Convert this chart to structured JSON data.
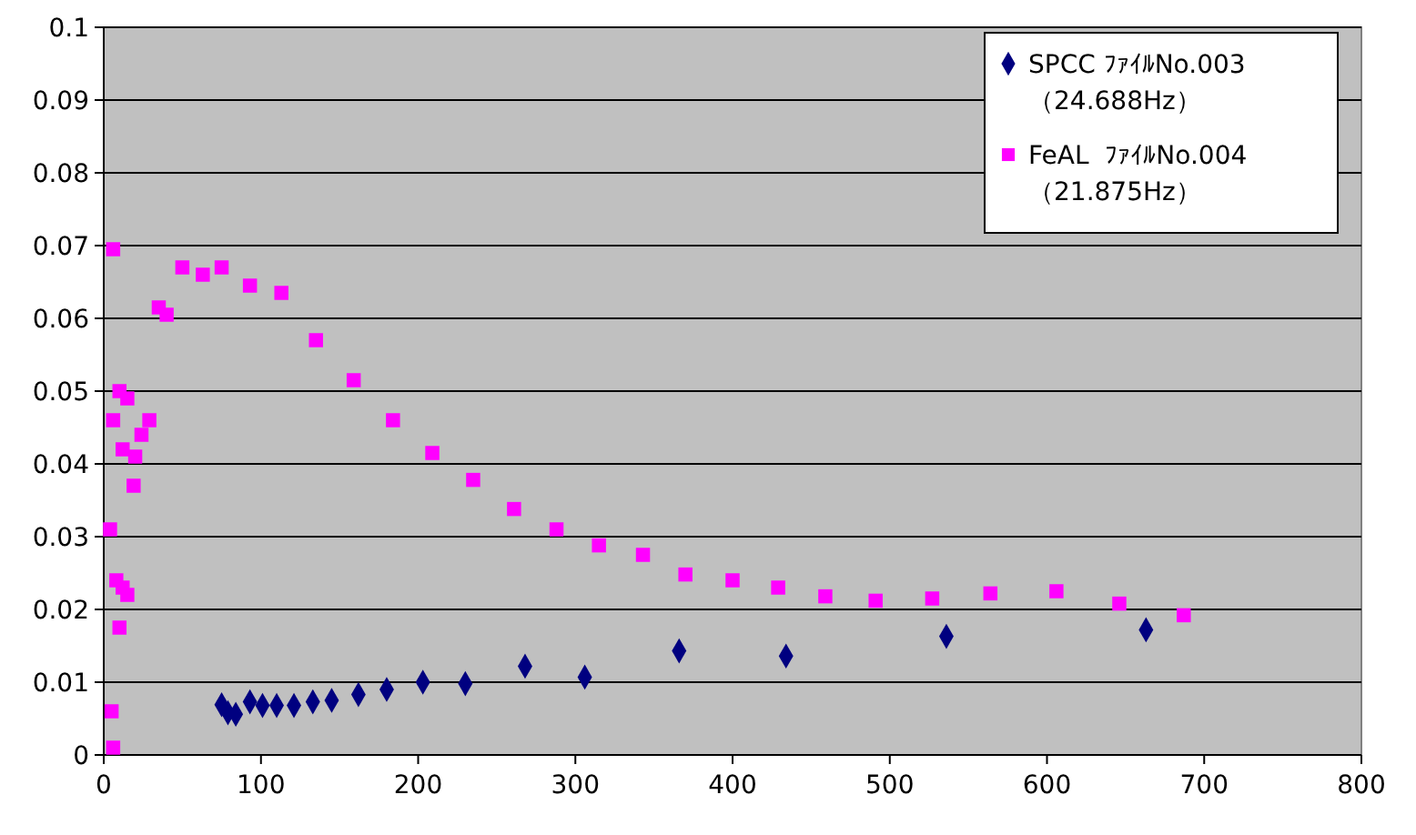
{
  "chart_data": {
    "type": "scatter",
    "xlim": [
      0,
      800
    ],
    "xticks": [
      0,
      100,
      200,
      300,
      400,
      500,
      600,
      700,
      800
    ],
    "ylim": [
      0,
      0.1
    ],
    "yticks": [
      0,
      0.01,
      0.02,
      0.03,
      0.04,
      0.05,
      0.06,
      0.07,
      0.08,
      0.09,
      0.1
    ],
    "grid": "y",
    "legend": "top right",
    "series": [
      {
        "name": "SPCC ﾌｧｲﾙNo.003\n（24.688Hz）",
        "color": "#000080",
        "marker": "diamond",
        "x": [
          75,
          79,
          84,
          93,
          101,
          110,
          121,
          133,
          145,
          162,
          180,
          203,
          230,
          268,
          306,
          366,
          434,
          536,
          663
        ],
        "values": [
          0.0069,
          0.0058,
          0.0056,
          0.0073,
          0.0068,
          0.0068,
          0.0068,
          0.0073,
          0.0075,
          0.0083,
          0.009,
          0.01,
          0.0098,
          0.0122,
          0.0107,
          0.0143,
          0.0136,
          0.0163,
          0.0172
        ]
      },
      {
        "name": "FeAL  ﾌｧｲﾙNo.004\n（21.875Hz）",
        "color": "#ff00ff",
        "marker": "square",
        "x": [
          6,
          4,
          6,
          10,
          15,
          12,
          20,
          19,
          24,
          29,
          8,
          12,
          15,
          10,
          5,
          6,
          35,
          40,
          50,
          63,
          75,
          93,
          113,
          135,
          159,
          184,
          209,
          235,
          261,
          288,
          315,
          343,
          370,
          400,
          429,
          459,
          491,
          527,
          564,
          606,
          646,
          687
        ],
        "values": [
          0.0695,
          0.031,
          0.046,
          0.05,
          0.049,
          0.042,
          0.041,
          0.037,
          0.044,
          0.046,
          0.024,
          0.023,
          0.022,
          0.0175,
          0.006,
          0.001,
          0.0615,
          0.0605,
          0.067,
          0.066,
          0.067,
          0.0645,
          0.0635,
          0.057,
          0.0515,
          0.046,
          0.0415,
          0.0378,
          0.0338,
          0.031,
          0.0288,
          0.0275,
          0.0248,
          0.024,
          0.023,
          0.0218,
          0.0212,
          0.0215,
          0.0222,
          0.0225,
          0.0208,
          0.0192
        ]
      }
    ]
  }
}
